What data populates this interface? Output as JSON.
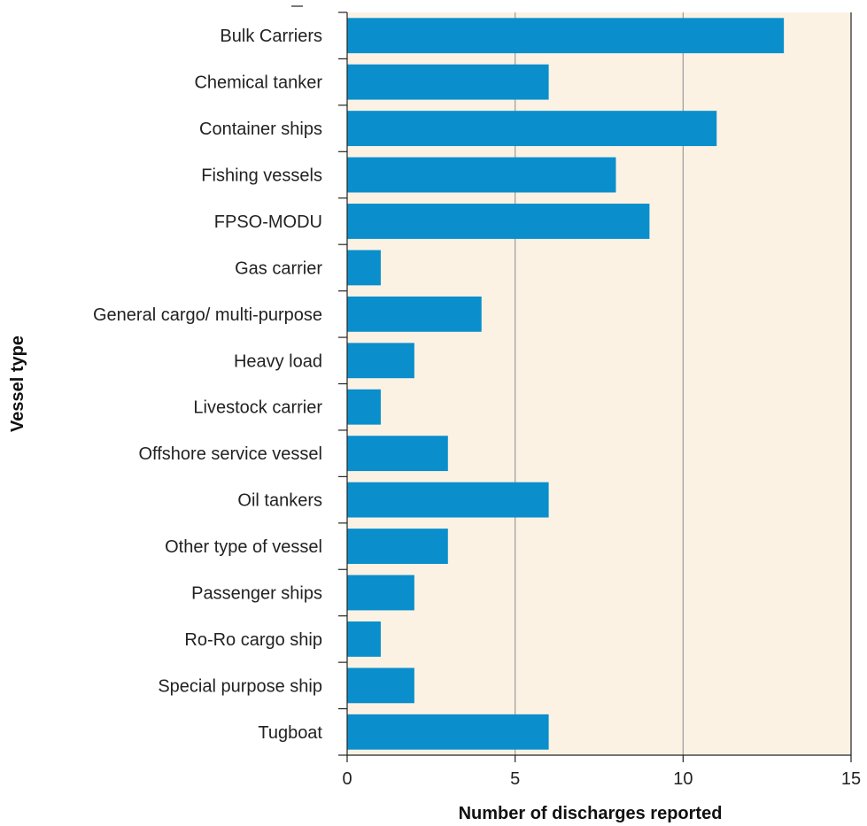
{
  "chart_data": {
    "type": "bar",
    "orientation": "horizontal",
    "categories": [
      "Bulk Carriers",
      "Chemical tanker",
      "Container ships",
      "Fishing vessels",
      "FPSO-MODU",
      "Gas carrier",
      "General cargo/ multi-purpose",
      "Heavy load",
      "Livestock carrier",
      "Offshore service vessel",
      "Oil tankers",
      "Other type of vessel",
      "Passenger ships",
      "Ro-Ro cargo ship",
      "Special purpose ship",
      "Tugboat"
    ],
    "values": [
      13,
      6,
      11,
      8,
      9,
      1,
      4,
      2,
      1,
      3,
      6,
      3,
      2,
      1,
      2,
      6
    ],
    "xlabel": "Number of discharges reported",
    "ylabel": "Vessel type",
    "xlim": [
      0,
      15
    ],
    "xticks": [
      0,
      5,
      10,
      15
    ],
    "xtick_labels": [
      "0",
      "5",
      "10",
      "15"
    ],
    "grid": "vertical at 5 and 10",
    "legend": "none"
  },
  "colors": {
    "bar": "#0a8fcc",
    "plot_background": "#fcf2e4",
    "grid": "#9a9a9a",
    "axis": "#222222"
  }
}
